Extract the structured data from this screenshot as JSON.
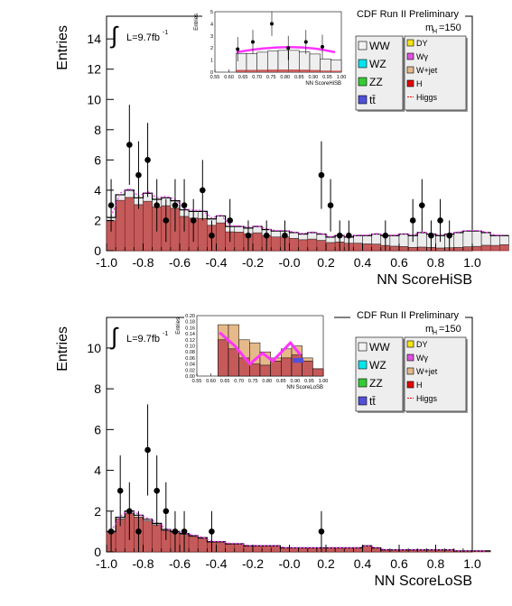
{
  "panels": [
    {
      "title": "CDF Run II Preliminary",
      "ylabel": "Entries",
      "xlabel": "NN ScoreHiSB",
      "lumi": "L=9.7fb",
      "lumi_sup": "-1",
      "mass_label": "m",
      "mass_sub": "H",
      "mass_value": "=150",
      "legend": [
        {
          "label": "WW",
          "color": "#f2f2f2"
        },
        {
          "label": "WZ",
          "color": "#00e5ee"
        },
        {
          "label": "ZZ",
          "color": "#33cc33"
        },
        {
          "label": "tt̄",
          "color": "#5050d8"
        },
        {
          "label": "DY",
          "color": "#f5e31a"
        },
        {
          "label": "Wγ",
          "color": "#e050e0"
        },
        {
          "label": "W+jet",
          "color": "#e6b98a"
        },
        {
          "label": "H",
          "color": "#e60000"
        },
        {
          "label": "Higgs",
          "color": "#e60000"
        }
      ],
      "inset": {
        "ylabel": "Entries",
        "xlabel": "NN ScoreHiSB",
        "xticks": [
          "0.55",
          "0.60",
          "0.65",
          "0.70",
          "0.75",
          "0.80",
          "0.85",
          "0.90",
          "0.95",
          "1.00"
        ],
        "yticks": [
          "0",
          "1",
          "2",
          "3",
          "4",
          "5"
        ]
      },
      "chart_data": {
        "type": "bar",
        "xlabel": "NN ScoreHiSB",
        "ylabel": "Entries",
        "xlim": [
          -1.0,
          1.0
        ],
        "ylim": [
          0,
          15.5
        ],
        "xticks": [
          "-1.0",
          "-0.8",
          "-0.6",
          "-0.4",
          "-0.2",
          "-0.0",
          "0.2",
          "0.4",
          "0.6",
          "0.8",
          "1.0"
        ],
        "yticks": [
          "0",
          "2",
          "4",
          "6",
          "8",
          "10",
          "12",
          "14"
        ],
        "bin_width": 0.05,
        "background_total": [
          2.2,
          3.7,
          4.0,
          3.5,
          3.8,
          3.4,
          3.5,
          3.3,
          2.7,
          2.6,
          2.6,
          2.1,
          2.3,
          1.6,
          1.6,
          1.5,
          1.6,
          1.4,
          1.3,
          1.3,
          1.2,
          1.1,
          1.2,
          1.1,
          0.9,
          1.0,
          0.9,
          1.0,
          1.0,
          1.1,
          1.0,
          1.0,
          1.1,
          1.0,
          1.2,
          1.1,
          1.0,
          1.1,
          1.2,
          1.3,
          1.3,
          1.2,
          1.0,
          1.0
        ],
        "wjet_fraction": [
          0.9,
          0.9,
          0.88,
          0.87,
          0.86,
          0.85,
          0.85,
          0.85,
          0.84,
          0.83,
          0.82,
          0.8,
          0.8,
          0.78,
          0.77,
          0.75,
          0.74,
          0.72,
          0.7,
          0.7,
          0.68,
          0.66,
          0.64,
          0.62,
          0.6,
          0.58,
          0.55,
          0.5,
          0.45,
          0.4,
          0.35,
          0.3,
          0.25,
          0.22,
          0.2,
          0.2,
          0.18,
          0.18,
          0.18,
          0.2,
          0.22,
          0.3,
          0.35,
          0.4
        ],
        "data_points": [
          {
            "x": -0.975,
            "y": 3
          },
          {
            "x": -0.875,
            "y": 7
          },
          {
            "x": -0.825,
            "y": 5
          },
          {
            "x": -0.775,
            "y": 6
          },
          {
            "x": -0.725,
            "y": 3
          },
          {
            "x": -0.675,
            "y": 2
          },
          {
            "x": -0.625,
            "y": 3
          },
          {
            "x": -0.575,
            "y": 3
          },
          {
            "x": -0.525,
            "y": 2
          },
          {
            "x": -0.475,
            "y": 4
          },
          {
            "x": -0.425,
            "y": 1
          },
          {
            "x": -0.325,
            "y": 2
          },
          {
            "x": -0.225,
            "y": 1
          },
          {
            "x": -0.125,
            "y": 1
          },
          {
            "x": -0.025,
            "y": 1
          },
          {
            "x": 0.175,
            "y": 5
          },
          {
            "x": 0.225,
            "y": 3
          },
          {
            "x": 0.275,
            "y": 1
          },
          {
            "x": 0.325,
            "y": 1
          },
          {
            "x": 0.525,
            "y": 1
          },
          {
            "x": 0.675,
            "y": 2
          },
          {
            "x": 0.725,
            "y": 3
          },
          {
            "x": 0.775,
            "y": 1
          },
          {
            "x": 0.825,
            "y": 2
          },
          {
            "x": 0.875,
            "y": 1
          }
        ]
      }
    },
    {
      "title": "CDF Run II Preliminary",
      "ylabel": "Entries",
      "xlabel": "NN ScoreLoSB",
      "lumi": "L=9.7fb",
      "lumi_sup": "-1",
      "mass_label": "m",
      "mass_sub": "H",
      "mass_value": "=150",
      "legend": [
        {
          "label": "WW",
          "color": "#f2f2f2"
        },
        {
          "label": "WZ",
          "color": "#00e5ee"
        },
        {
          "label": "ZZ",
          "color": "#33cc33"
        },
        {
          "label": "tt̄",
          "color": "#5050d8"
        },
        {
          "label": "DY",
          "color": "#f5e31a"
        },
        {
          "label": "Wγ",
          "color": "#e050e0"
        },
        {
          "label": "W+jet",
          "color": "#e6b98a"
        },
        {
          "label": "H",
          "color": "#e60000"
        },
        {
          "label": "Higgs",
          "color": "#e60000"
        }
      ],
      "inset": {
        "ylabel": "Entries",
        "xlabel": "NN ScoreLoSB",
        "xticks": [
          "0.55",
          "0.60",
          "0.65",
          "0.70",
          "0.75",
          "0.80",
          "0.85",
          "0.90",
          "0.95",
          "1.00"
        ],
        "yticks": [
          "0.00",
          "0.02",
          "0.04",
          "0.06",
          "0.08",
          "0.10",
          "0.12",
          "0.14",
          "0.16",
          "0.18",
          "0.20"
        ]
      },
      "chart_data": {
        "type": "bar",
        "xlabel": "NN ScoreLoSB",
        "ylabel": "Entries",
        "xlim": [
          -1.0,
          1.0
        ],
        "ylim": [
          0,
          11.5
        ],
        "xticks": [
          "-1.0",
          "-0.8",
          "-0.6",
          "-0.4",
          "-0.2",
          "-0.0",
          "0.2",
          "0.4",
          "0.6",
          "0.8",
          "1.0"
        ],
        "yticks": [
          "0",
          "2",
          "4",
          "6",
          "8",
          "10"
        ],
        "bin_width": 0.05,
        "background_total": [
          1.0,
          1.7,
          2.0,
          1.8,
          1.6,
          1.4,
          1.1,
          1.0,
          0.9,
          0.8,
          0.7,
          0.5,
          0.5,
          0.4,
          0.4,
          0.3,
          0.3,
          0.3,
          0.3,
          0.2,
          0.2,
          0.2,
          0.2,
          0.2,
          0.2,
          0.2,
          0.2,
          0.2,
          0.3,
          0.2,
          0.1,
          0.1,
          0.1,
          0.1,
          0.1,
          0.1,
          0.1,
          0.1,
          0.05,
          0.05,
          0.05,
          0.05
        ],
        "wjet_fraction": [
          0.95,
          0.95,
          0.95,
          0.95,
          0.95,
          0.95,
          0.95,
          0.95,
          0.95,
          0.95,
          0.95,
          0.95,
          0.95,
          0.95,
          0.95,
          0.95,
          0.95,
          0.95,
          0.95,
          0.95,
          0.95,
          0.95,
          0.95,
          0.95,
          0.95,
          0.95,
          0.95,
          0.95,
          0.95,
          0.95,
          0.95,
          0.95,
          0.95,
          0.95,
          0.95,
          0.95,
          0.95,
          0.95,
          0.95,
          0.95,
          0.95,
          0.95
        ],
        "data_points": [
          {
            "x": -0.975,
            "y": 1
          },
          {
            "x": -0.925,
            "y": 3
          },
          {
            "x": -0.875,
            "y": 2
          },
          {
            "x": -0.825,
            "y": 1
          },
          {
            "x": -0.775,
            "y": 5
          },
          {
            "x": -0.725,
            "y": 3
          },
          {
            "x": -0.675,
            "y": 2
          },
          {
            "x": -0.625,
            "y": 1
          },
          {
            "x": -0.575,
            "y": 1
          },
          {
            "x": -0.425,
            "y": 1
          },
          {
            "x": 0.175,
            "y": 1
          }
        ]
      }
    }
  ]
}
